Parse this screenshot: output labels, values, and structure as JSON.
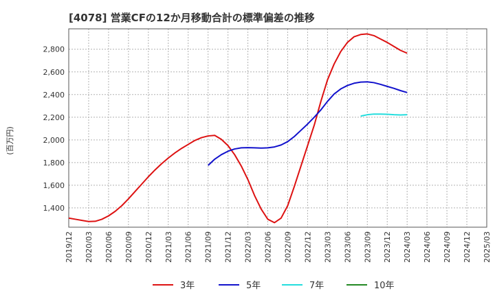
{
  "chart_data": {
    "type": "line",
    "title": "[4078]  営業CFの12か月移動合計の標準偏差の推移",
    "ylabel": "(百万円)",
    "xlabel": "",
    "ylim": [
      1230,
      2980
    ],
    "yticks": [
      1400,
      1600,
      1800,
      2000,
      2200,
      2400,
      2600,
      2800
    ],
    "ytick_labels": [
      "1,400",
      "1,600",
      "1,800",
      "2,000",
      "2,200",
      "2,400",
      "2,600",
      "2,800"
    ],
    "xticks": [
      "2019/12",
      "2020/03",
      "2020/06",
      "2020/09",
      "2020/12",
      "2021/03",
      "2021/06",
      "2021/09",
      "2021/12",
      "2022/03",
      "2022/06",
      "2022/09",
      "2022/12",
      "2023/03",
      "2023/06",
      "2023/09",
      "2023/12",
      "2024/03",
      "2024/06",
      "2024/09",
      "2024/12",
      "2025/03"
    ],
    "grid": true,
    "legend_position": "bottom",
    "series": [
      {
        "name": "3年",
        "color": "#dd1111",
        "points": [
          [
            "2019/12",
            1310
          ],
          [
            "2020/01",
            1300
          ],
          [
            "2020/02",
            1290
          ],
          [
            "2020/03",
            1280
          ],
          [
            "2020/04",
            1282
          ],
          [
            "2020/05",
            1300
          ],
          [
            "2020/06",
            1330
          ],
          [
            "2020/07",
            1370
          ],
          [
            "2020/08",
            1420
          ],
          [
            "2020/09",
            1480
          ],
          [
            "2020/10",
            1545
          ],
          [
            "2020/11",
            1610
          ],
          [
            "2020/12",
            1675
          ],
          [
            "2021/01",
            1735
          ],
          [
            "2021/02",
            1790
          ],
          [
            "2021/03",
            1840
          ],
          [
            "2021/04",
            1885
          ],
          [
            "2021/05",
            1925
          ],
          [
            "2021/06",
            1960
          ],
          [
            "2021/07",
            1995
          ],
          [
            "2021/08",
            2020
          ],
          [
            "2021/09",
            2035
          ],
          [
            "2021/10",
            2040
          ],
          [
            "2021/11",
            2005
          ],
          [
            "2021/12",
            1950
          ],
          [
            "2022/01",
            1870
          ],
          [
            "2022/02",
            1770
          ],
          [
            "2022/03",
            1650
          ],
          [
            "2022/04",
            1510
          ],
          [
            "2022/05",
            1390
          ],
          [
            "2022/06",
            1300
          ],
          [
            "2022/07",
            1270
          ],
          [
            "2022/08",
            1310
          ],
          [
            "2022/09",
            1420
          ],
          [
            "2022/10",
            1590
          ],
          [
            "2022/11",
            1770
          ],
          [
            "2022/12",
            1950
          ],
          [
            "2023/01",
            2130
          ],
          [
            "2023/02",
            2340
          ],
          [
            "2023/03",
            2530
          ],
          [
            "2023/04",
            2670
          ],
          [
            "2023/05",
            2780
          ],
          [
            "2023/06",
            2860
          ],
          [
            "2023/07",
            2910
          ],
          [
            "2023/08",
            2930
          ],
          [
            "2023/09",
            2935
          ],
          [
            "2023/10",
            2920
          ],
          [
            "2023/11",
            2890
          ],
          [
            "2023/12",
            2860
          ],
          [
            "2024/01",
            2825
          ],
          [
            "2024/02",
            2790
          ],
          [
            "2024/03",
            2765
          ]
        ]
      },
      {
        "name": "5年",
        "color": "#1111cc",
        "points": [
          [
            "2021/09",
            1775
          ],
          [
            "2021/10",
            1830
          ],
          [
            "2021/11",
            1870
          ],
          [
            "2021/12",
            1900
          ],
          [
            "2022/01",
            1920
          ],
          [
            "2022/02",
            1930
          ],
          [
            "2022/03",
            1932
          ],
          [
            "2022/04",
            1930
          ],
          [
            "2022/05",
            1928
          ],
          [
            "2022/06",
            1930
          ],
          [
            "2022/07",
            1938
          ],
          [
            "2022/08",
            1955
          ],
          [
            "2022/09",
            1985
          ],
          [
            "2022/10",
            2030
          ],
          [
            "2022/11",
            2085
          ],
          [
            "2022/12",
            2140
          ],
          [
            "2023/01",
            2200
          ],
          [
            "2023/02",
            2265
          ],
          [
            "2023/03",
            2340
          ],
          [
            "2023/04",
            2405
          ],
          [
            "2023/05",
            2450
          ],
          [
            "2023/06",
            2480
          ],
          [
            "2023/07",
            2500
          ],
          [
            "2023/08",
            2510
          ],
          [
            "2023/09",
            2512
          ],
          [
            "2023/10",
            2505
          ],
          [
            "2023/11",
            2490
          ],
          [
            "2023/12",
            2472
          ],
          [
            "2024/01",
            2455
          ],
          [
            "2024/02",
            2435
          ],
          [
            "2024/03",
            2418
          ]
        ]
      },
      {
        "name": "7年",
        "color": "#22dddd",
        "points": [
          [
            "2023/08",
            2210
          ],
          [
            "2023/09",
            2222
          ],
          [
            "2023/10",
            2228
          ],
          [
            "2023/11",
            2228
          ],
          [
            "2023/12",
            2226
          ],
          [
            "2024/01",
            2222
          ],
          [
            "2024/02",
            2220
          ],
          [
            "2024/03",
            2222
          ]
        ]
      },
      {
        "name": "10年",
        "color": "#228822",
        "points": []
      }
    ]
  }
}
